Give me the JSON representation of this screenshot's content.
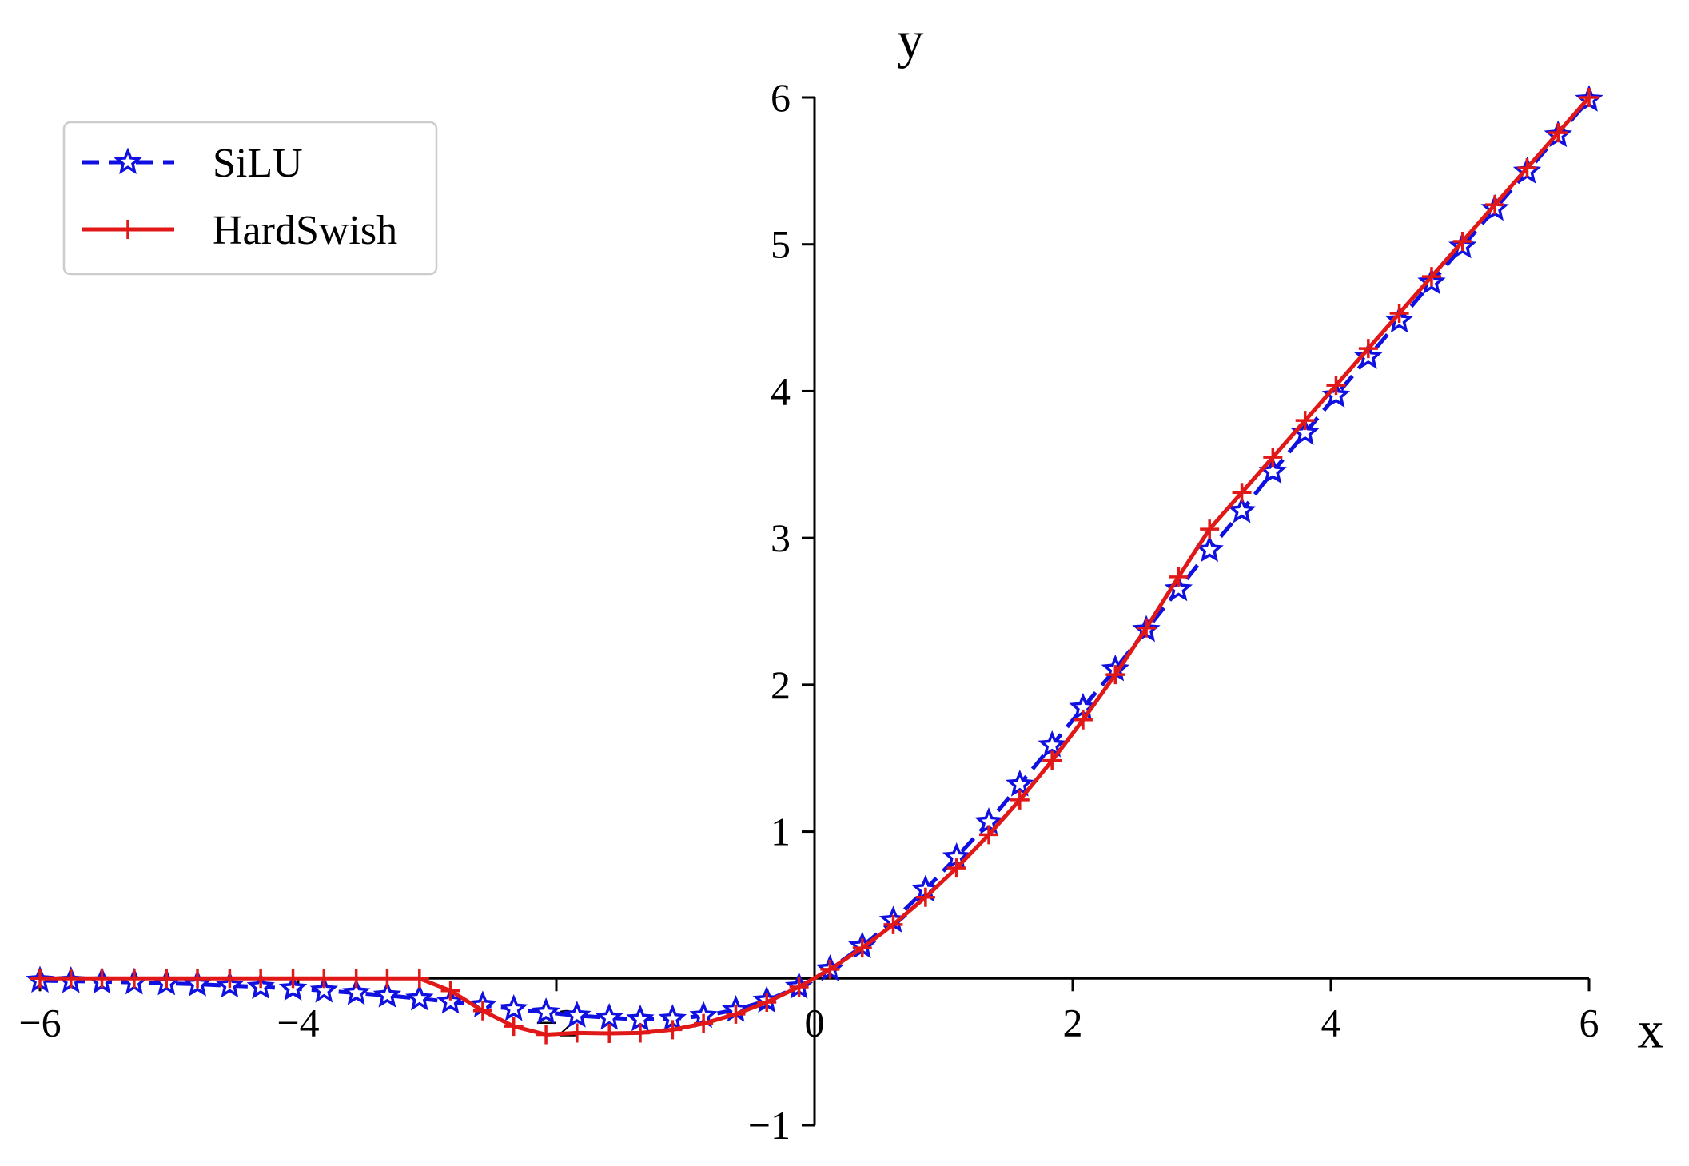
{
  "chart_data": {
    "type": "line",
    "xlabel": "x",
    "ylabel": "y",
    "xlim": [
      -6,
      6
    ],
    "ylim": [
      -1,
      6
    ],
    "xticks": [
      "−6",
      "−4",
      "−2",
      "0",
      "2",
      "4",
      "6"
    ],
    "yticks": [
      "−1",
      "1",
      "2",
      "3",
      "4",
      "5",
      "6"
    ],
    "origin_label": "0",
    "grid": false,
    "legend_position": "top-left",
    "series": [
      {
        "name": "SiLU",
        "color": "#1010e0",
        "linestyle": "dashed",
        "marker": "star",
        "x": [
          -6.0,
          -5.76,
          -5.52,
          -5.27,
          -5.02,
          -4.78,
          -4.53,
          -4.29,
          -4.04,
          -3.8,
          -3.55,
          -3.31,
          -3.06,
          -2.82,
          -2.57,
          -2.33,
          -2.08,
          -1.84,
          -1.59,
          -1.35,
          -1.1,
          -0.86,
          -0.61,
          -0.37,
          -0.12,
          0.12,
          0.37,
          0.61,
          0.86,
          1.1,
          1.35,
          1.59,
          1.84,
          2.08,
          2.33,
          2.57,
          2.82,
          3.06,
          3.31,
          3.55,
          3.8,
          4.04,
          4.29,
          4.53,
          4.78,
          5.02,
          5.27,
          5.52,
          5.76,
          6.0
        ],
        "y": [
          -0.015,
          -0.018,
          -0.022,
          -0.027,
          -0.033,
          -0.04,
          -0.049,
          -0.058,
          -0.069,
          -0.083,
          -0.099,
          -0.116,
          -0.137,
          -0.159,
          -0.183,
          -0.208,
          -0.231,
          -0.253,
          -0.268,
          -0.278,
          -0.275,
          -0.255,
          -0.214,
          -0.151,
          -0.057,
          0.063,
          0.219,
          0.394,
          0.605,
          0.826,
          1.065,
          1.321,
          1.588,
          1.844,
          2.106,
          2.374,
          2.651,
          2.918,
          3.183,
          3.452,
          3.715,
          3.97,
          4.232,
          4.48,
          4.741,
          4.986,
          5.242,
          5.496,
          5.743,
          5.985
        ]
      },
      {
        "name": "HardSwish",
        "color": "#e01818",
        "linestyle": "solid",
        "marker": "plus",
        "x": [
          -6.0,
          -5.76,
          -5.52,
          -5.27,
          -5.02,
          -4.78,
          -4.53,
          -4.29,
          -4.04,
          -3.8,
          -3.55,
          -3.31,
          -3.06,
          -2.82,
          -2.57,
          -2.33,
          -2.08,
          -1.84,
          -1.59,
          -1.35,
          -1.1,
          -0.86,
          -0.61,
          -0.37,
          -0.12,
          0.12,
          0.37,
          0.61,
          0.86,
          1.1,
          1.35,
          1.59,
          1.84,
          2.08,
          2.33,
          2.57,
          2.82,
          3.06,
          3.31,
          3.55,
          3.8,
          4.04,
          4.29,
          4.53,
          4.78,
          5.02,
          5.27,
          5.52,
          5.76,
          6.0
        ],
        "y": [
          0,
          0,
          0,
          0,
          0,
          0,
          0,
          0,
          0,
          0,
          0,
          0,
          0,
          -0.084,
          -0.22,
          -0.326,
          -0.382,
          -0.371,
          -0.374,
          -0.371,
          -0.349,
          -0.307,
          -0.243,
          -0.162,
          -0.058,
          0.062,
          0.208,
          0.367,
          0.553,
          0.752,
          0.979,
          1.216,
          1.484,
          1.761,
          2.069,
          2.387,
          2.735,
          3.06,
          3.31,
          3.55,
          3.8,
          4.04,
          4.29,
          4.53,
          4.78,
          5.02,
          5.27,
          5.52,
          5.76,
          6.0
        ]
      }
    ]
  }
}
